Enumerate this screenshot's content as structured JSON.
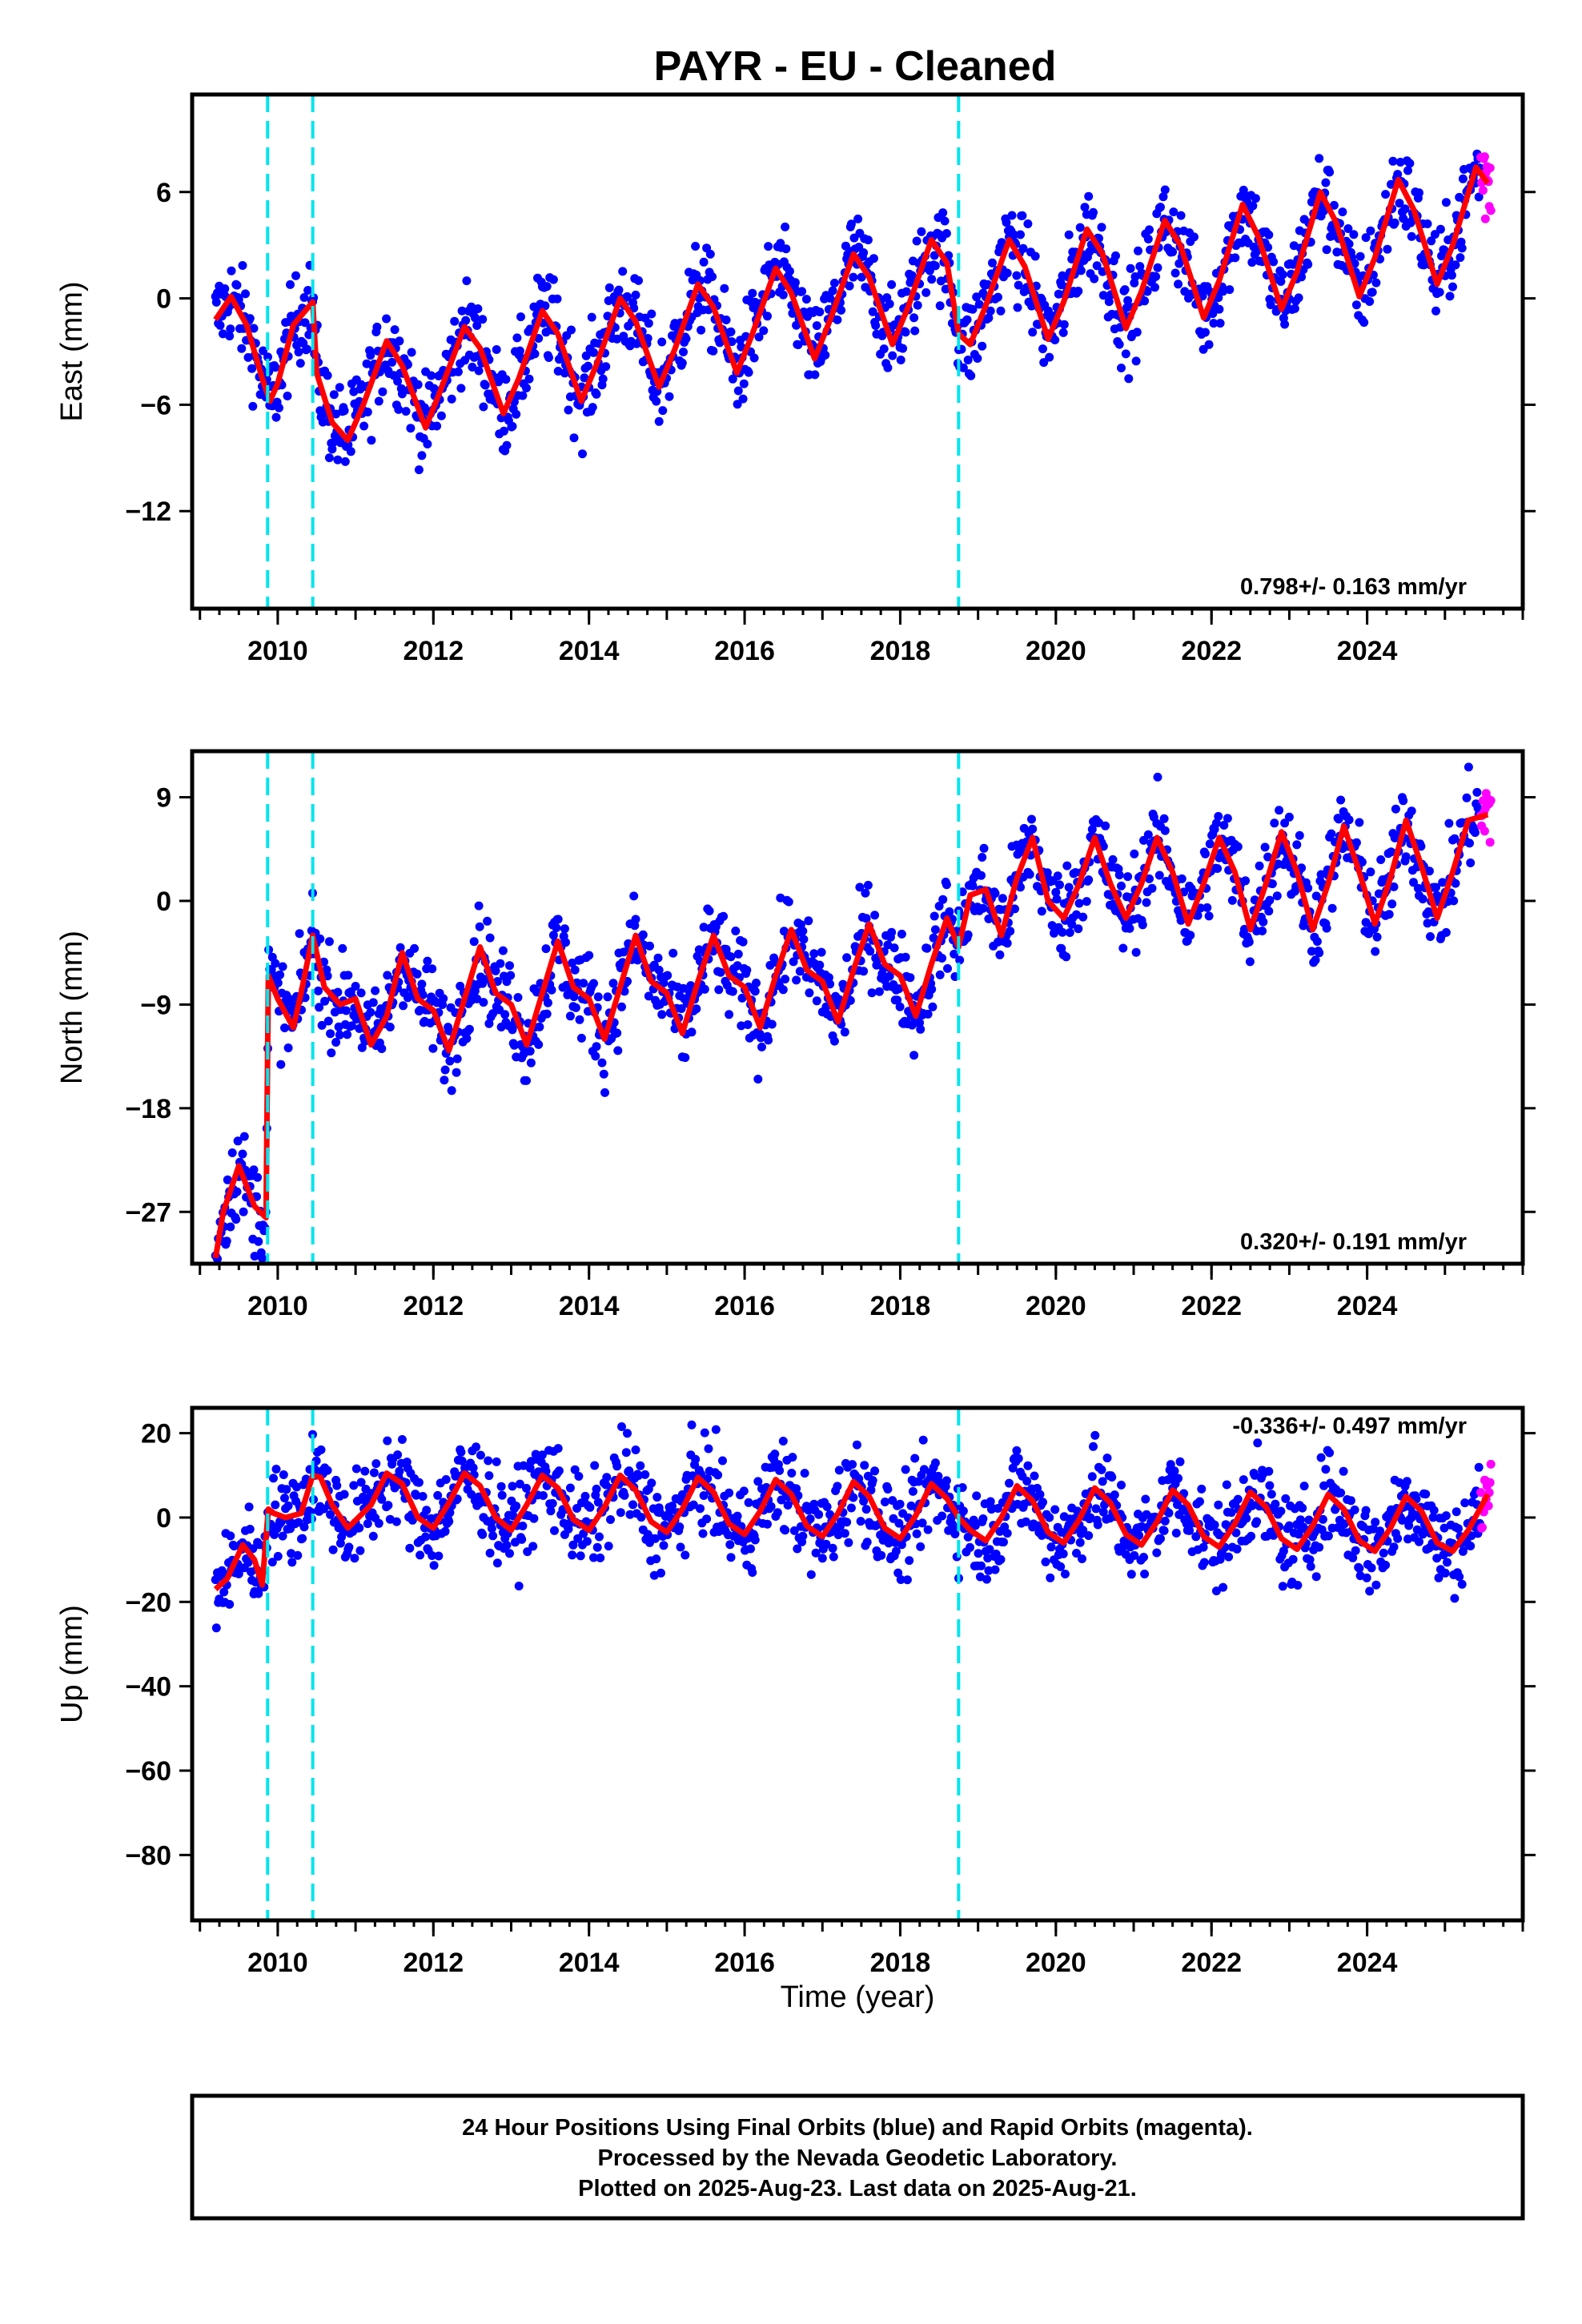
{
  "chart_data": {
    "title": "PAYR  - EU - Cleaned",
    "type": "scatter",
    "xlabel": "Time (year)",
    "xlim": [
      2008.9,
      2026.0
    ],
    "xticks": [
      2010,
      2012,
      2014,
      2016,
      2018,
      2020,
      2022,
      2024
    ],
    "equipment_changes": [
      2009.87,
      2010.45,
      2018.75
    ],
    "colors": {
      "final": "#0000ff",
      "rapid": "#ff00ff",
      "model": "#ff0000",
      "change": "#00e5ee"
    },
    "panels": [
      {
        "ylabel": "East (mm)",
        "ylim": [
          -17.5,
          11.5
        ],
        "yticks": [
          6,
          0,
          -6,
          -12
        ],
        "rate": "0.798+/- 0.163 mm/yr",
        "rate_pos": "bottom-right",
        "model": {
          "x": [
            2009.2,
            2009.4,
            2009.6,
            2009.8,
            2009.9,
            2010.0,
            2010.2,
            2010.45,
            2010.5,
            2010.7,
            2010.9,
            2011.1,
            2011.4,
            2011.6,
            2011.9,
            2012.1,
            2012.4,
            2012.6,
            2012.9,
            2013.1,
            2013.4,
            2013.6,
            2013.9,
            2014.1,
            2014.4,
            2014.6,
            2014.9,
            2015.1,
            2015.4,
            2015.6,
            2015.9,
            2016.1,
            2016.4,
            2016.6,
            2016.9,
            2017.1,
            2017.4,
            2017.6,
            2017.9,
            2018.1,
            2018.4,
            2018.6,
            2018.75,
            2018.9,
            2019.1,
            2019.4,
            2019.6,
            2019.9,
            2020.1,
            2020.4,
            2020.6,
            2020.9,
            2021.1,
            2021.4,
            2021.6,
            2021.9,
            2022.1,
            2022.4,
            2022.6,
            2022.9,
            2023.1,
            2023.4,
            2023.6,
            2023.9,
            2024.1,
            2024.4,
            2024.6,
            2024.9,
            2025.1,
            2025.4,
            2025.55
          ],
          "y": [
            -1.2,
            0.1,
            -1.5,
            -4.5,
            -5.8,
            -4.8,
            -1.5,
            -0.2,
            -4.2,
            -7.0,
            -8.0,
            -6.0,
            -2.4,
            -3.8,
            -7.3,
            -5.1,
            -1.6,
            -2.8,
            -6.5,
            -4.5,
            -0.7,
            -2.0,
            -5.8,
            -3.7,
            0.0,
            -1.3,
            -5.0,
            -2.9,
            0.8,
            -0.5,
            -4.2,
            -2.0,
            1.7,
            0.3,
            -3.4,
            -1.2,
            2.5,
            1.2,
            -2.6,
            -0.5,
            3.3,
            2.0,
            -2.0,
            -2.6,
            -0.4,
            3.3,
            1.8,
            -2.3,
            -0.2,
            3.9,
            2.5,
            -1.7,
            0.4,
            4.4,
            3.0,
            -1.1,
            1.0,
            5.3,
            3.5,
            -0.6,
            1.5,
            6.0,
            4.3,
            0.1,
            2.3,
            6.7,
            5.0,
            0.8,
            3.0,
            7.4,
            6.5
          ]
        }
      },
      {
        "ylabel": "North (mm)",
        "ylim": [
          -31.5,
          13.0
        ],
        "yticks": [
          9,
          0,
          -9,
          -18,
          -27
        ],
        "rate": "0.320+/- 0.191 mm/yr",
        "rate_pos": "bottom-right",
        "model": {
          "x": [
            2009.2,
            2009.3,
            2009.5,
            2009.7,
            2009.85,
            2009.88,
            2010.0,
            2010.2,
            2010.3,
            2010.45,
            2010.6,
            2010.8,
            2011.0,
            2011.2,
            2011.4,
            2011.6,
            2011.8,
            2012.0,
            2012.2,
            2012.4,
            2012.6,
            2012.8,
            2013.0,
            2013.2,
            2013.4,
            2013.6,
            2013.8,
            2014.0,
            2014.2,
            2014.4,
            2014.6,
            2014.8,
            2015.0,
            2015.2,
            2015.4,
            2015.6,
            2015.8,
            2016.0,
            2016.2,
            2016.4,
            2016.6,
            2016.8,
            2017.0,
            2017.2,
            2017.4,
            2017.6,
            2017.8,
            2018.0,
            2018.2,
            2018.4,
            2018.6,
            2018.75,
            2018.9,
            2019.1,
            2019.3,
            2019.5,
            2019.7,
            2019.9,
            2020.1,
            2020.3,
            2020.5,
            2020.7,
            2020.9,
            2021.1,
            2021.3,
            2021.5,
            2021.7,
            2021.9,
            2022.1,
            2022.3,
            2022.5,
            2022.7,
            2022.9,
            2023.1,
            2023.3,
            2023.5,
            2023.7,
            2023.9,
            2024.1,
            2024.3,
            2024.5,
            2024.7,
            2024.9,
            2025.1,
            2025.3,
            2025.55
          ],
          "y": [
            -31.0,
            -27.0,
            -23.0,
            -26.5,
            -27.5,
            -6.5,
            -8.5,
            -11.0,
            -8.0,
            -3.0,
            -7.5,
            -9.0,
            -8.5,
            -12.5,
            -10.0,
            -4.5,
            -8.5,
            -9.5,
            -13.0,
            -8.5,
            -4.0,
            -8.0,
            -9.0,
            -12.5,
            -8.0,
            -3.5,
            -7.5,
            -8.5,
            -12.0,
            -7.5,
            -3.0,
            -7.0,
            -8.0,
            -11.5,
            -7.0,
            -3.0,
            -6.5,
            -7.5,
            -11.0,
            -6.5,
            -2.5,
            -6.0,
            -7.0,
            -10.5,
            -6.0,
            -2.0,
            -5.5,
            -6.5,
            -10.0,
            -5.5,
            -1.5,
            -4.0,
            0.5,
            1.0,
            -3.0,
            2.0,
            5.5,
            0.0,
            -1.5,
            1.5,
            5.5,
            1.5,
            -1.5,
            1.5,
            5.5,
            2.5,
            -2.0,
            1.5,
            5.5,
            2.5,
            -2.5,
            1.5,
            6.0,
            2.5,
            -2.5,
            1.5,
            6.5,
            2.5,
            -2.0,
            2.0,
            7.0,
            3.0,
            -1.5,
            2.5,
            7.0,
            7.5
          ]
        }
      },
      {
        "ylabel": "Up (mm)",
        "ylim": [
          -95.5,
          26.0
        ],
        "yticks": [
          20,
          0,
          -20,
          -40,
          -60,
          -80
        ],
        "rate": "-0.336+/- 0.497 mm/yr",
        "rate_pos": "top-right",
        "model": {
          "x": [
            2009.2,
            2009.35,
            2009.55,
            2009.7,
            2009.8,
            2009.88,
            2009.95,
            2010.1,
            2010.3,
            2010.45,
            2010.55,
            2010.7,
            2010.9,
            2011.2,
            2011.4,
            2011.6,
            2011.8,
            2012.0,
            2012.2,
            2012.4,
            2012.6,
            2012.8,
            2013.0,
            2013.2,
            2013.4,
            2013.6,
            2013.8,
            2014.0,
            2014.2,
            2014.4,
            2014.6,
            2014.8,
            2015.0,
            2015.2,
            2015.4,
            2015.6,
            2015.8,
            2016.0,
            2016.2,
            2016.4,
            2016.6,
            2016.8,
            2017.0,
            2017.2,
            2017.4,
            2017.6,
            2017.8,
            2018.0,
            2018.2,
            2018.4,
            2018.6,
            2018.75,
            2018.9,
            2019.1,
            2019.3,
            2019.5,
            2019.7,
            2019.9,
            2020.1,
            2020.3,
            2020.5,
            2020.7,
            2020.9,
            2021.1,
            2021.3,
            2021.5,
            2021.7,
            2021.9,
            2022.1,
            2022.3,
            2022.5,
            2022.7,
            2022.9,
            2023.1,
            2023.3,
            2023.5,
            2023.7,
            2023.9,
            2024.1,
            2024.3,
            2024.5,
            2024.7,
            2024.9,
            2025.1,
            2025.3,
            2025.55
          ],
          "y": [
            -17.0,
            -14.5,
            -6.5,
            -10.0,
            -16.0,
            2.0,
            1.0,
            0.0,
            1.0,
            10.0,
            9.5,
            3.0,
            -2.5,
            3.0,
            10.5,
            8.0,
            0.0,
            -2.5,
            3.5,
            10.5,
            7.5,
            0.0,
            -3.0,
            3.0,
            10.0,
            7.0,
            -0.5,
            -3.0,
            2.5,
            10.0,
            6.5,
            -1.0,
            -3.5,
            2.0,
            9.5,
            6.0,
            -1.5,
            -4.0,
            1.5,
            9.0,
            5.5,
            -2.0,
            -4.5,
            1.0,
            8.5,
            5.0,
            -2.5,
            -5.0,
            0.5,
            8.0,
            4.5,
            0.0,
            -3.0,
            -5.5,
            0.0,
            7.5,
            4.0,
            -3.5,
            -6.0,
            -0.5,
            7.0,
            3.5,
            -4.0,
            -6.5,
            -1.0,
            6.5,
            3.0,
            -4.5,
            -7.0,
            -1.5,
            6.0,
            2.5,
            -5.0,
            -7.5,
            -2.0,
            5.5,
            2.0,
            -5.5,
            -8.0,
            -2.5,
            5.0,
            1.5,
            -6.0,
            -8.0,
            -3.0,
            5.5
          ]
        }
      }
    ]
  },
  "footer": {
    "line1": "24 Hour Positions Using Final Orbits (blue) and Rapid Orbits (magenta).",
    "line2": "Processed by the Nevada Geodetic Laboratory.",
    "line3": "Plotted on 2025-Aug-23. Last data on 2025-Aug-21."
  }
}
